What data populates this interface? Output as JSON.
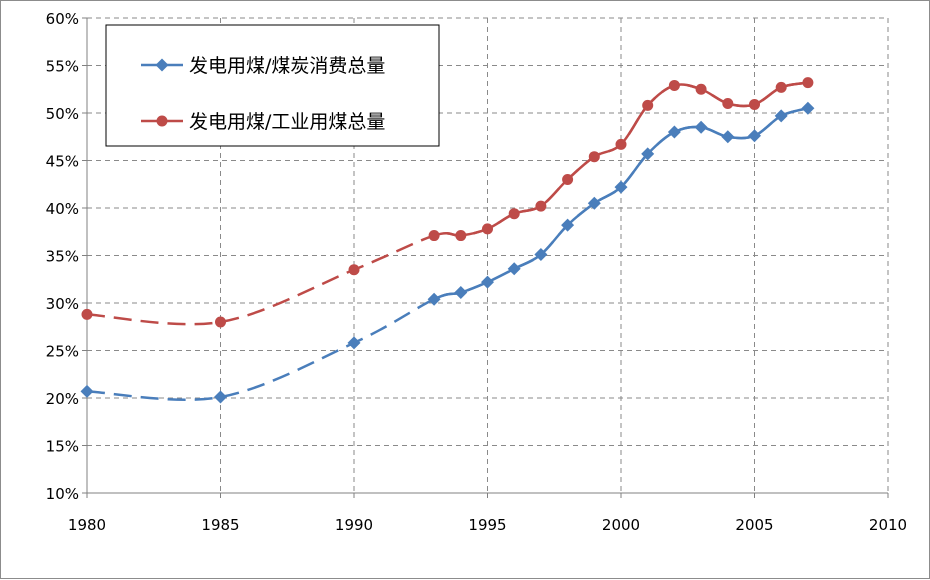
{
  "chart_data": {
    "type": "line",
    "title": "",
    "xlabel": "",
    "ylabel": "",
    "xlim": [
      1980,
      2010
    ],
    "ylim": [
      10,
      60
    ],
    "x_ticks": [
      1980,
      1985,
      1990,
      1995,
      2000,
      2005,
      2010
    ],
    "y_ticks": [
      10,
      15,
      20,
      25,
      30,
      35,
      40,
      45,
      50,
      55,
      60
    ],
    "y_tick_labels": [
      "10%",
      "15%",
      "20%",
      "25%",
      "30%",
      "35%",
      "40%",
      "45%",
      "50%",
      "55%",
      "60%"
    ],
    "grid": true,
    "legend_position": "top-left",
    "series": [
      {
        "name": "发电用煤/煤炭消费总量",
        "color": "#4a7ebb",
        "marker": "diamond",
        "x": [
          1980,
          1985,
          1990,
          1993,
          1994,
          1995,
          1996,
          1997,
          1998,
          1999,
          2000,
          2001,
          2002,
          2003,
          2004,
          2005,
          2006,
          2007
        ],
        "values": [
          20.7,
          20.1,
          25.8,
          30.4,
          31.1,
          32.2,
          33.6,
          35.1,
          38.2,
          40.5,
          42.2,
          45.7,
          48.0,
          48.5,
          47.5,
          47.6,
          49.7,
          50.5
        ]
      },
      {
        "name": "发电用煤/工业用煤总量",
        "color": "#be4b48",
        "marker": "circle",
        "x": [
          1980,
          1985,
          1990,
          1993,
          1994,
          1995,
          1996,
          1997,
          1998,
          1999,
          2000,
          2001,
          2002,
          2003,
          2004,
          2005,
          2006,
          2007
        ],
        "values": [
          28.8,
          28.0,
          33.5,
          37.1,
          37.1,
          37.8,
          39.4,
          40.2,
          43.0,
          45.4,
          46.7,
          50.8,
          52.9,
          52.5,
          51.0,
          50.9,
          52.7,
          53.2
        ]
      }
    ]
  }
}
